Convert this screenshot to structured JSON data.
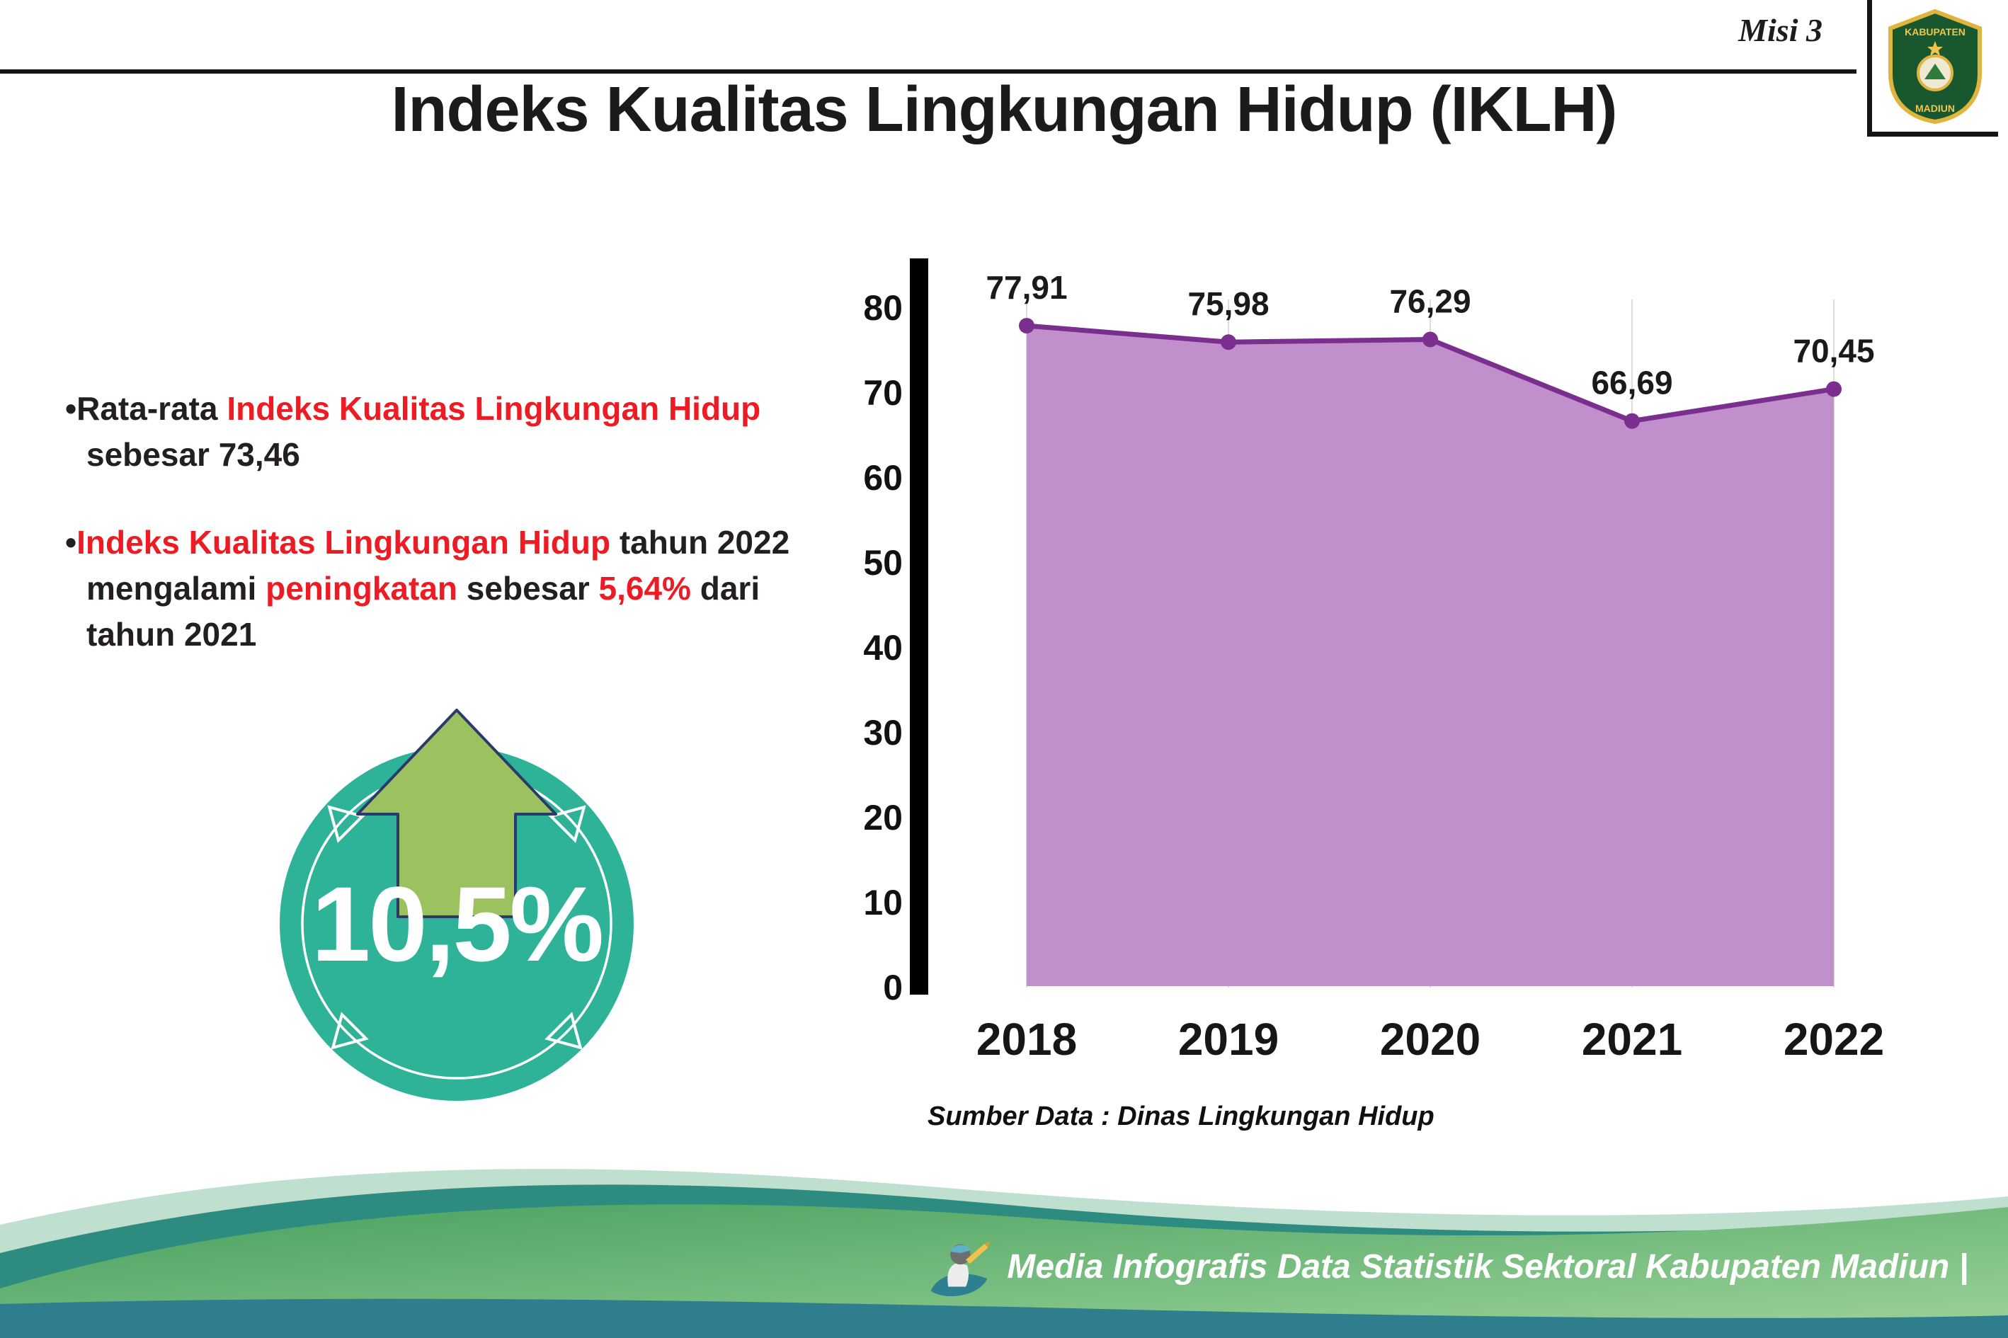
{
  "colors": {
    "red": "#ed1c24",
    "dark": "#231f20",
    "purple-line": "#7a2e8e",
    "purple-fill": "#c18fcb",
    "teal-circle": "#2eb398",
    "arrow-green": "#9cc25f",
    "footer-teal": "#2e8b80",
    "footer-green-light": "#9ed49a",
    "footer-green-dark": "#47a05f"
  },
  "header": {
    "misi": "Misi 3",
    "title": "Indeks Kualitas Lingkungan Hidup (IKLH)",
    "logo_top": "KABUPATEN",
    "logo_bottom": "MADIUN"
  },
  "bullets": [
    {
      "marker": "•",
      "segments": [
        {
          "text": "Rata-rata ",
          "color": "dark"
        },
        {
          "text": "Indeks Kualitas Lingkungan Hidup",
          "color": "red"
        },
        {
          "text": " sebesar 73,46",
          "color": "dark"
        }
      ]
    },
    {
      "marker": "•",
      "segments": [
        {
          "text": "Indeks Kualitas Lingkungan Hidup",
          "color": "red"
        },
        {
          "text": " tahun 2022 mengalami ",
          "color": "dark"
        },
        {
          "text": "peningkatan",
          "color": "red"
        },
        {
          "text": " sebesar ",
          "color": "dark"
        },
        {
          "text": "5,64%",
          "color": "red"
        },
        {
          "text": " dari tahun 2021",
          "color": "dark"
        }
      ]
    }
  ],
  "badge": {
    "value": "10,5%"
  },
  "chart_data": {
    "type": "area",
    "title": "Indeks Kualitas Lingkungan Hidup (IKLH)",
    "categories": [
      "2018",
      "2019",
      "2020",
      "2021",
      "2022"
    ],
    "values": [
      77.91,
      75.98,
      76.29,
      66.69,
      70.45
    ],
    "value_labels": [
      "77,91",
      "75,98",
      "76,29",
      "66,69",
      "70,45"
    ],
    "ylim": [
      0,
      80
    ],
    "ytick_step": 10,
    "grid": "vertical-light",
    "legend": "none",
    "source": "Sumber Data : Dinas Lingkungan Hidup"
  },
  "footer": {
    "credit": "Media Infografis Data Statistik Sektoral Kabupaten Madiun |"
  }
}
